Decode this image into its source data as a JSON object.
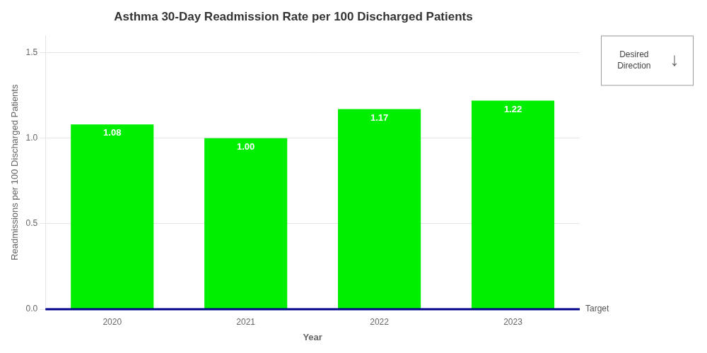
{
  "chart_data": {
    "type": "bar",
    "title": "Asthma 30-Day Readmission Rate per 100 Discharged Patients",
    "xlabel": "Year",
    "ylabel": "Readmissions per 100 Discharged Patients",
    "categories": [
      "2020",
      "2021",
      "2022",
      "2023"
    ],
    "values": [
      1.08,
      1.0,
      1.17,
      1.22
    ],
    "value_labels": [
      "1.08",
      "1.00",
      "1.17",
      "1.22"
    ],
    "data_labels": true,
    "color": "#00EE00",
    "ylim": [
      0,
      1.6
    ],
    "yticks": [
      {
        "value": 0.0,
        "label": "0.0"
      },
      0.5,
      {
        "value": 1.0,
        "label": "1.0"
      },
      1.5
    ],
    "grid": true,
    "annotations": [
      {
        "text": "Target",
        "y": 0.0,
        "color": "#00008B"
      },
      {
        "text": [
          "Desired",
          "Direction",
          "↓"
        ]
      }
    ]
  }
}
